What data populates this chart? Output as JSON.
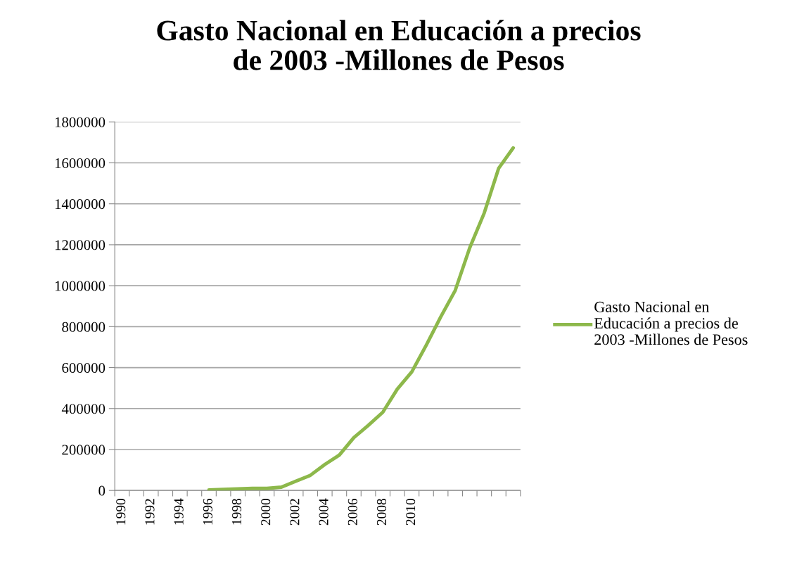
{
  "chart_data": {
    "type": "line",
    "title": "Gasto Nacional en Educación a precios\nde 2003 -Millones de Pesos",
    "categories": [
      "1990",
      null,
      "1992",
      null,
      "1994",
      null,
      "1996",
      null,
      "1998",
      null,
      "2000",
      null,
      "2002",
      null,
      "2004",
      null,
      "2006",
      null,
      "2008",
      null,
      "2010",
      null,
      null,
      null,
      null,
      null,
      null,
      null
    ],
    "series": [
      {
        "name": "Gasto Nacional en\nEducación a precios de\n2003 -Millones de Pesos",
        "color": "#8db84b",
        "values": [
          null,
          null,
          null,
          null,
          null,
          null,
          3000,
          5000,
          8000,
          10000,
          10000,
          16000,
          45000,
          74000,
          127000,
          173000,
          258000,
          318000,
          382000,
          495000,
          579000,
          710000,
          848000,
          977000,
          1185000,
          1355000,
          1574000,
          1673000
        ]
      }
    ],
    "ylim": [
      0,
      1800000
    ],
    "yticks": [
      0,
      200000,
      400000,
      600000,
      800000,
      1000000,
      1200000,
      1400000,
      1600000,
      1800000
    ],
    "grid": "y",
    "legend": "right"
  }
}
